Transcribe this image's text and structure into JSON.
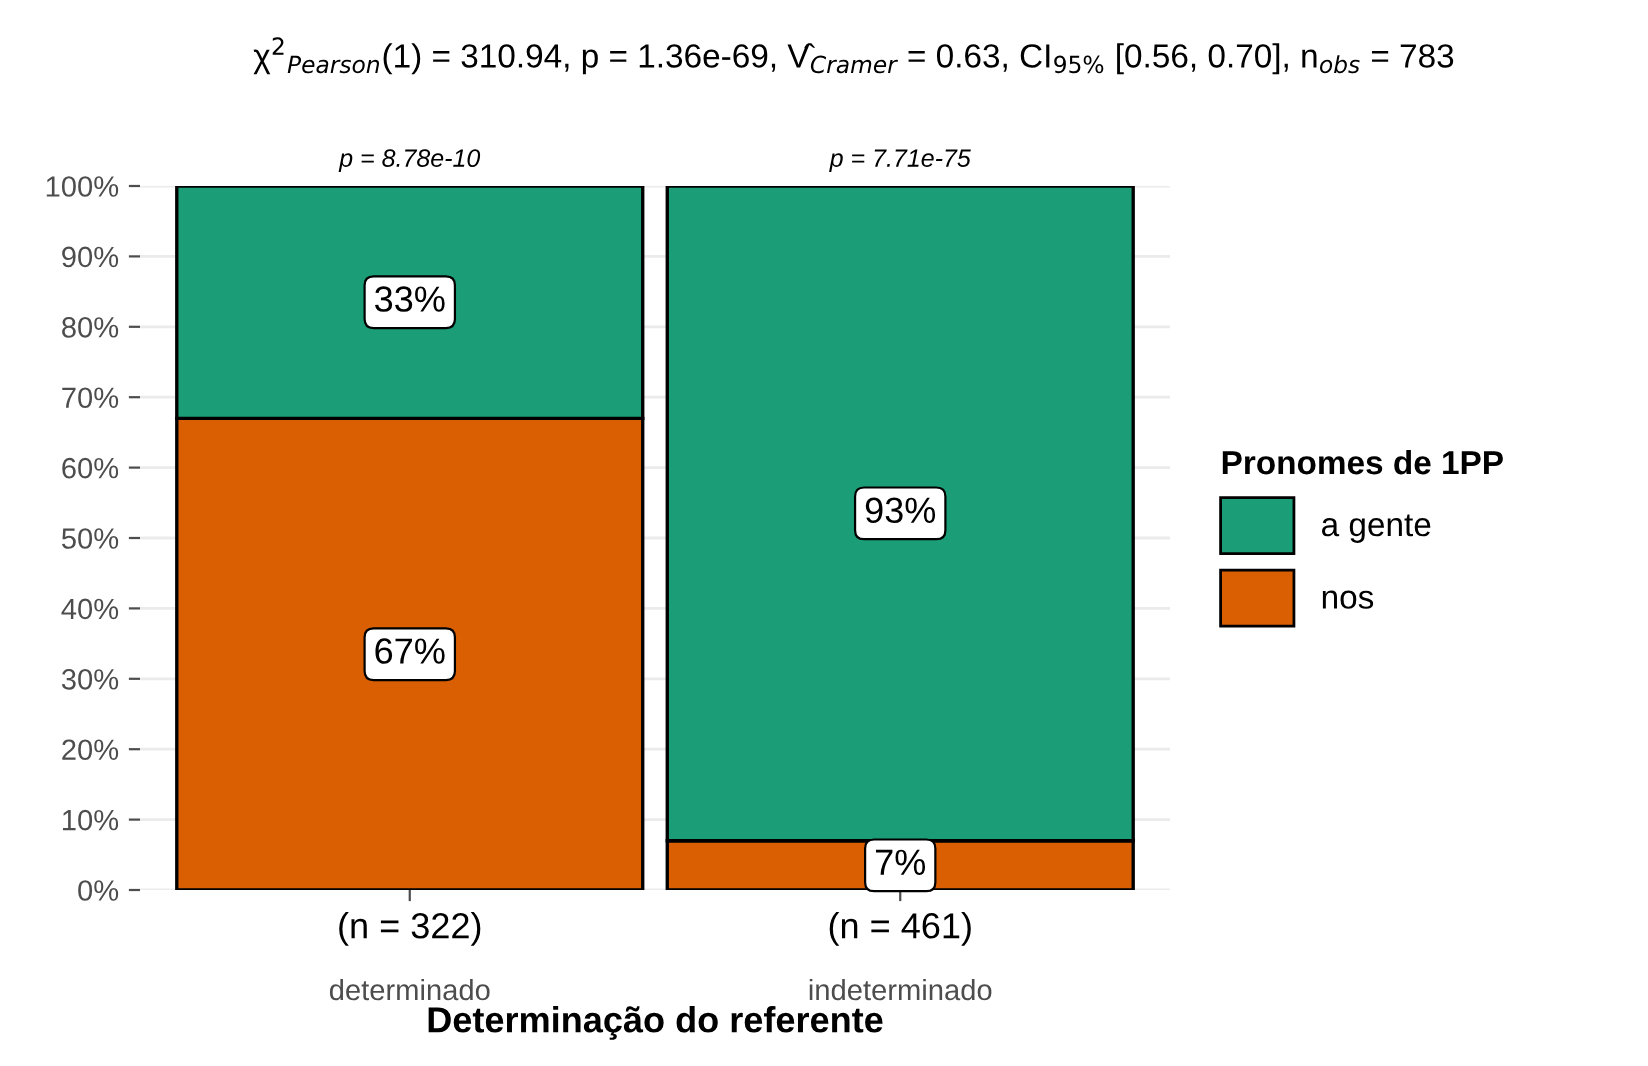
{
  "chart_data": {
    "type": "bar",
    "stacked": true,
    "title": "χ$^{2}$$_{Pearson}$(1) = 310.94, p = 1.36e-69, V̂$_{Cramer}$ = 0.63, CI$_{95%}$ [0.56, 0.70], n$_{obs}$ = 783",
    "xlabel": "Determinação do referente",
    "legend_title": "Pronomes de 1PP",
    "legend": "right",
    "grid": "y",
    "categories": [
      "determinado",
      "indeterminado"
    ],
    "series": [
      {
        "name": "nos",
        "color": "#d95f02",
        "values": [
          67,
          7
        ],
        "value_labels": [
          "67%",
          "7%"
        ]
      },
      {
        "name": "a gente",
        "color": "#1b9e77",
        "values": [
          33,
          93
        ],
        "value_labels": [
          "33%",
          "93%"
        ]
      }
    ],
    "ylim": [
      0,
      100
    ],
    "yticks": [
      {
        "value": 0,
        "label": "0%"
      },
      {
        "value": 10,
        "label": "10%"
      },
      {
        "value": 20,
        "label": "20%"
      },
      {
        "value": 30,
        "label": "30%"
      },
      {
        "value": 40,
        "label": "40%"
      },
      {
        "value": 50,
        "label": "50%"
      },
      {
        "value": 60,
        "label": "60%"
      },
      {
        "value": 70,
        "label": "70%"
      },
      {
        "value": 80,
        "label": "80%"
      },
      {
        "value": 90,
        "label": "90%"
      },
      {
        "value": 100,
        "label": "100%"
      }
    ],
    "annotations": [
      "p = 8.78e-10",
      "p = 7.71e-75",
      "(n = 322)",
      "(n = 461)"
    ]
  }
}
